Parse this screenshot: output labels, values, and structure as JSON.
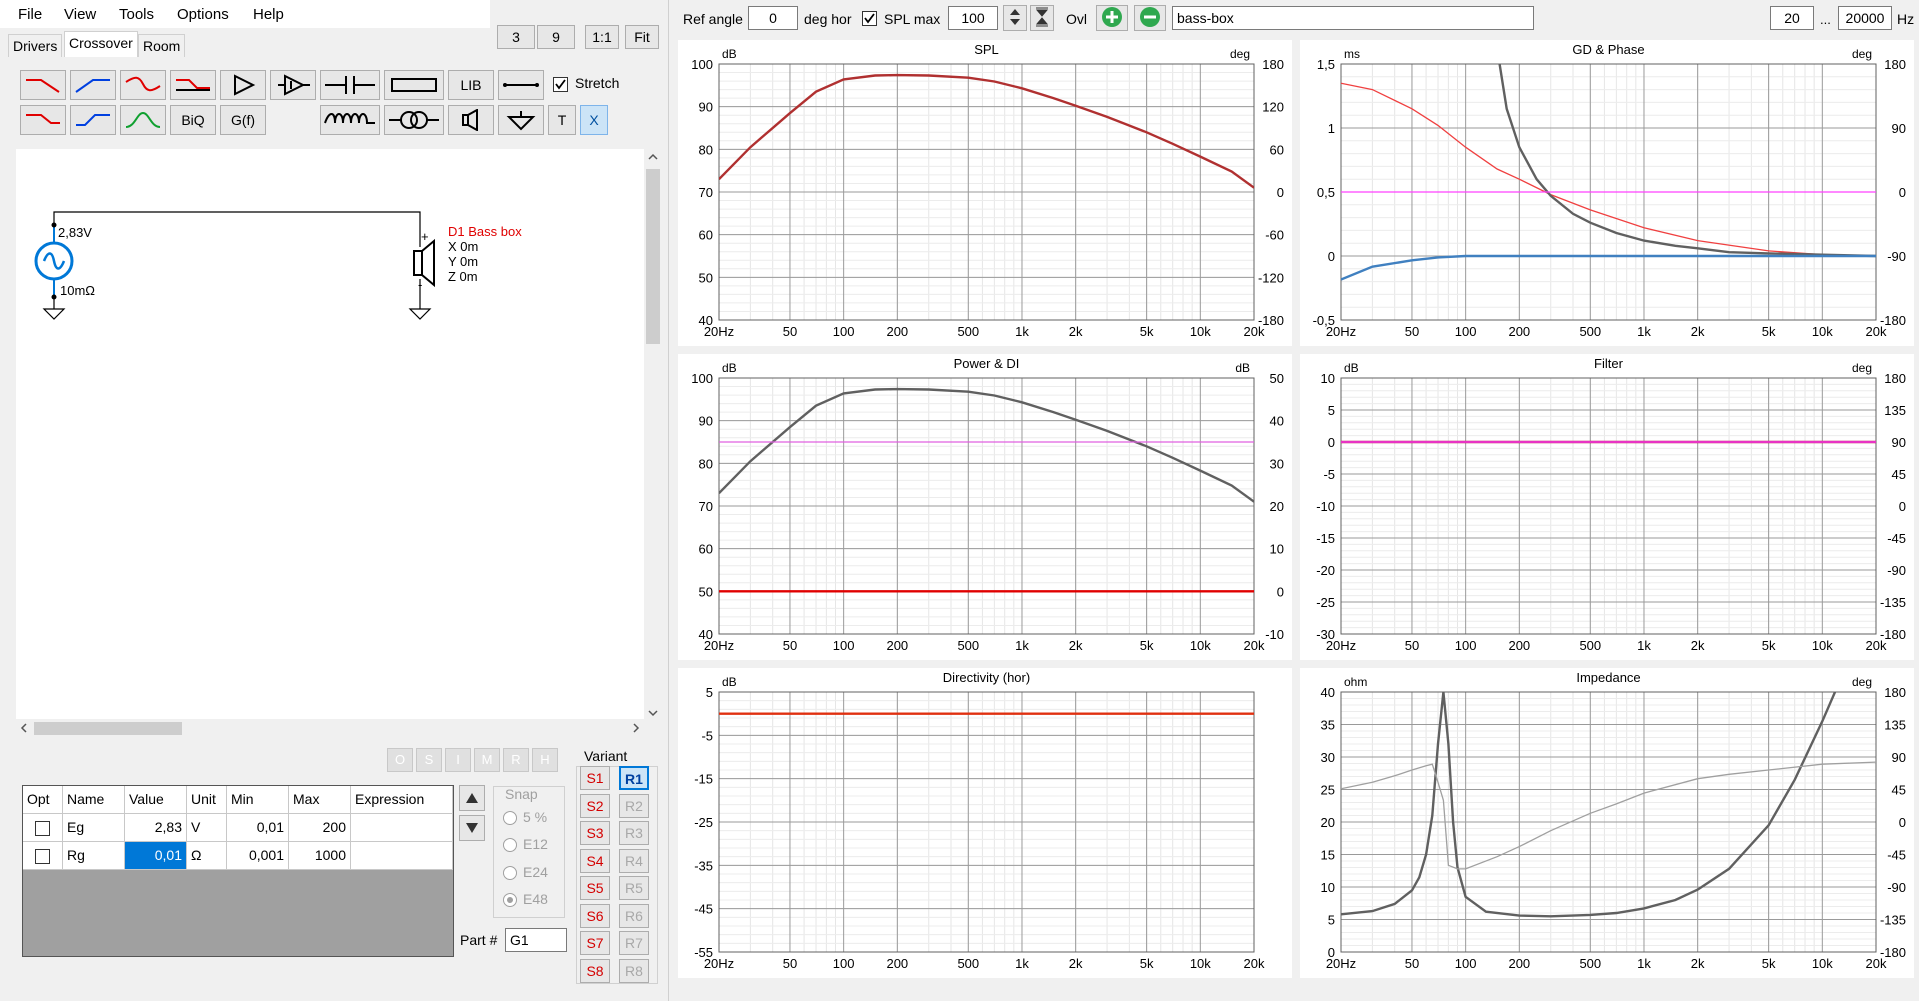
{
  "menu": [
    "File",
    "View",
    "Tools",
    "Options",
    "Help"
  ],
  "tabs": [
    "Drivers",
    "Crossover",
    "Room"
  ],
  "zoom": {
    "a": "3",
    "b": "9",
    "ratio": "1:1",
    "fit": "Fit"
  },
  "toolbar": {
    "lib": "LIB",
    "biq": "BiQ",
    "gf": "G(f)",
    "t": "T",
    "x": "X",
    "stretch": "Stretch"
  },
  "schematic": {
    "source_voltage": "2,83V",
    "source_resistance": "10mΩ",
    "driver_name": "D1 Bass box",
    "driver_x": "X 0m",
    "driver_y": "Y 0m",
    "driver_z": "Z 0m",
    "plus": "+",
    "minus": "-"
  },
  "ostatus": [
    "O",
    "S",
    "I",
    "M",
    "R",
    "H"
  ],
  "table": {
    "headers": [
      "Opt",
      "Name",
      "Value",
      "Unit",
      "Min",
      "Max",
      "Expression"
    ],
    "rows": [
      {
        "name": "Eg",
        "value": "2,83",
        "unit": "V",
        "min": "0,01",
        "max": "200",
        "expr": ""
      },
      {
        "name": "Rg",
        "value": "0,01",
        "unit": "Ω",
        "min": "0,001",
        "max": "1000",
        "expr": ""
      }
    ]
  },
  "snap": {
    "title": "Snap",
    "options": [
      "5 %",
      "E12",
      "E24",
      "E48"
    ]
  },
  "variant": {
    "title": "Variant",
    "s": [
      "S1",
      "S2",
      "S3",
      "S4",
      "S5",
      "S6",
      "S7",
      "S8"
    ],
    "r": [
      "R1",
      "R2",
      "R3",
      "R4",
      "R5",
      "R6",
      "R7",
      "R8"
    ]
  },
  "part": {
    "label": "Part #",
    "value": "G1"
  },
  "topbar": {
    "ref_angle_label": "Ref angle",
    "ref_angle": "0",
    "deg_hor": "deg hor",
    "spl_max_label": "SPL max",
    "spl_max": "100",
    "ovl": "Ovl",
    "name": "bass-box",
    "fmin": "20",
    "dots": "...",
    "fmax": "20000",
    "hz": "Hz"
  },
  "x_ticks": [
    "20Hz",
    "50",
    "100",
    "200",
    "500",
    "1k",
    "2k",
    "5k",
    "10k",
    "20k"
  ],
  "charts": [
    {
      "id": "spl",
      "title": "SPL",
      "left_unit": "dB",
      "right_unit": "deg",
      "left_ticks": [
        "100",
        "90",
        "80",
        "70",
        "60",
        "50",
        "40"
      ],
      "right_ticks": [
        "180",
        "120",
        "60",
        "0",
        "-60",
        "-120",
        "-180"
      ]
    },
    {
      "id": "gd",
      "title": "GD & Phase",
      "left_unit": "ms",
      "right_unit": "deg",
      "left_ticks": [
        "1,5",
        "1",
        "0,5",
        "0",
        "-0,5"
      ],
      "right_ticks": [
        "180",
        "90",
        "0",
        "-90",
        "-180"
      ]
    },
    {
      "id": "power",
      "title": "Power & DI",
      "left_unit": "dB",
      "right_unit": "dB",
      "left_ticks": [
        "100",
        "90",
        "80",
        "70",
        "60",
        "50",
        "40"
      ],
      "right_ticks": [
        "50",
        "40",
        "30",
        "20",
        "10",
        "0",
        "-10"
      ]
    },
    {
      "id": "filter",
      "title": "Filter",
      "left_unit": "dB",
      "right_unit": "deg",
      "left_ticks": [
        "10",
        "5",
        "0",
        "-5",
        "-10",
        "-15",
        "-20",
        "-25",
        "-30"
      ],
      "right_ticks": [
        "180",
        "135",
        "90",
        "45",
        "0",
        "-45",
        "-90",
        "-135",
        "-180"
      ]
    },
    {
      "id": "dir",
      "title": "Directivity (hor)",
      "left_unit": "dB",
      "right_unit": "",
      "left_ticks": [
        "5",
        "-5",
        "-15",
        "-25",
        "-35",
        "-45",
        "-55"
      ],
      "right_ticks": []
    },
    {
      "id": "imp",
      "title": "Impedance",
      "left_unit": "ohm",
      "right_unit": "deg",
      "left_ticks": [
        "40",
        "35",
        "30",
        "25",
        "20",
        "15",
        "10",
        "5",
        "0"
      ],
      "right_ticks": [
        "180",
        "135",
        "90",
        "45",
        "0",
        "-45",
        "-90",
        "-135",
        "-180"
      ]
    }
  ],
  "chart_data": [
    {
      "type": "line",
      "title": "SPL",
      "xlabel": "Hz",
      "ylabel": "dB",
      "xscale": "log",
      "xlim": [
        20,
        20000
      ],
      "ylim": [
        40,
        100
      ],
      "y2lim": [
        -180,
        180
      ],
      "series": [
        {
          "color": "#b03030",
          "x": [
            20,
            30,
            50,
            70,
            100,
            150,
            200,
            300,
            500,
            700,
            1000,
            1500,
            2000,
            3000,
            5000,
            7000,
            10000,
            15000,
            20000
          ],
          "y": [
            73,
            80.5,
            88.5,
            93.5,
            96.4,
            97.3,
            97.4,
            97.3,
            96.8,
            95.9,
            94.3,
            92.0,
            90.2,
            87.6,
            84.0,
            81.3,
            78.3,
            74.8,
            71.0
          ]
        }
      ]
    },
    {
      "type": "line",
      "title": "GD & Phase",
      "xlabel": "Hz",
      "ylabel": "ms",
      "xscale": "log",
      "xlim": [
        20,
        20000
      ],
      "ylim": [
        -0.5,
        1.5
      ],
      "y2lim": [
        -180,
        180
      ],
      "series": [
        {
          "axis": "left",
          "color": "#f04040",
          "x": [
            20,
            30,
            50,
            70,
            100,
            150,
            200,
            300,
            500,
            1000,
            2000,
            5000,
            10000,
            20000
          ],
          "y": [
            1.35,
            1.3,
            1.15,
            1.02,
            0.85,
            0.68,
            0.6,
            0.48,
            0.36,
            0.22,
            0.12,
            0.04,
            0.01,
            0
          ]
        },
        {
          "axis": "left",
          "color": "#606060",
          "x": [
            155,
            170,
            200,
            250,
            300,
            400,
            500,
            700,
            1000,
            1500,
            2000,
            3000,
            5000,
            10000,
            20000
          ],
          "y": [
            1.5,
            1.15,
            0.85,
            0.6,
            0.47,
            0.33,
            0.26,
            0.18,
            0.12,
            0.08,
            0.06,
            0.03,
            0.02,
            0.01,
            0
          ]
        },
        {
          "axis": "right",
          "color": "#4080c0",
          "x": [
            20,
            30,
            50,
            70,
            100,
            200,
            500,
            1000,
            5000,
            20000
          ],
          "y": [
            -123,
            -105,
            -96,
            -92,
            -90,
            -90,
            -90,
            -90,
            -90,
            -90
          ]
        },
        {
          "axis": "right",
          "color": "#ff40ff",
          "x": [
            20,
            20000
          ],
          "y": [
            0,
            0
          ]
        }
      ]
    },
    {
      "type": "line",
      "title": "Power & DI",
      "xlabel": "Hz",
      "ylabel": "dB",
      "xscale": "log",
      "xlim": [
        20,
        20000
      ],
      "ylim": [
        40,
        100
      ],
      "y2lim": [
        -10,
        50
      ],
      "series": [
        {
          "axis": "left",
          "color": "#606060",
          "x": [
            20,
            30,
            50,
            70,
            100,
            150,
            200,
            300,
            500,
            700,
            1000,
            1500,
            2000,
            3000,
            5000,
            7000,
            10000,
            15000,
            20000
          ],
          "y": [
            73,
            80.5,
            88.5,
            93.5,
            96.4,
            97.3,
            97.4,
            97.3,
            96.8,
            95.9,
            94.3,
            92.0,
            90.2,
            87.6,
            84.0,
            81.3,
            78.3,
            74.8,
            71.0
          ]
        },
        {
          "axis": "left",
          "color": "#e060e0",
          "x": [
            20,
            20000
          ],
          "y": [
            85,
            85
          ]
        },
        {
          "axis": "right",
          "color": "#e00000",
          "x": [
            20,
            20000
          ],
          "y": [
            0,
            0
          ]
        }
      ]
    },
    {
      "type": "line",
      "title": "Filter",
      "xlabel": "Hz",
      "ylabel": "dB",
      "xscale": "log",
      "xlim": [
        20,
        20000
      ],
      "ylim": [
        -30,
        10
      ],
      "y2lim": [
        -180,
        180
      ],
      "series": [
        {
          "axis": "left",
          "color": "#c02060",
          "x": [
            20,
            20000
          ],
          "y": [
            0,
            0
          ]
        },
        {
          "axis": "right",
          "color": "#ff40ff",
          "x": [
            20,
            20000
          ],
          "y": [
            90,
            90
          ]
        }
      ]
    },
    {
      "type": "line",
      "title": "Directivity (hor)",
      "xlabel": "Hz",
      "ylabel": "dB",
      "xscale": "log",
      "xlim": [
        20,
        20000
      ],
      "ylim": [
        -55,
        5
      ],
      "series": [
        {
          "color": "#e03010",
          "x": [
            20,
            20000
          ],
          "y": [
            0,
            0
          ]
        }
      ]
    },
    {
      "type": "line",
      "title": "Impedance",
      "xlabel": "Hz",
      "ylabel": "ohm",
      "xscale": "log",
      "xlim": [
        20,
        20000
      ],
      "ylim": [
        0,
        40
      ],
      "y2lim": [
        -180,
        180
      ],
      "series": [
        {
          "axis": "left",
          "color": "#606060",
          "x": [
            20,
            30,
            40,
            50,
            55,
            60,
            65,
            70,
            75,
            80,
            85,
            90,
            100,
            130,
            200,
            300,
            500,
            700,
            1000,
            1500,
            2000,
            3000,
            5000,
            7000,
            10000,
            12000,
            14000
          ],
          "y": [
            5.8,
            6.3,
            7.4,
            9.5,
            11.5,
            15,
            21,
            32,
            40,
            32,
            20,
            13,
            8.5,
            6.2,
            5.6,
            5.5,
            5.7,
            6.0,
            6.7,
            8.0,
            9.6,
            12.8,
            19.5,
            26.5,
            35.5,
            40.5,
            46
          ]
        },
        {
          "axis": "right",
          "color": "#a0a0a0",
          "x": [
            20,
            30,
            40,
            50,
            60,
            65,
            70,
            75,
            80,
            90,
            100,
            150,
            200,
            300,
            500,
            700,
            1000,
            2000,
            3000,
            5000,
            10000,
            20000
          ],
          "y": [
            46,
            55,
            64,
            72,
            78,
            80,
            55,
            30,
            -60,
            -65,
            -65,
            -48,
            -34,
            -12,
            12,
            25,
            40,
            60,
            66,
            72,
            80,
            83
          ]
        }
      ]
    }
  ]
}
